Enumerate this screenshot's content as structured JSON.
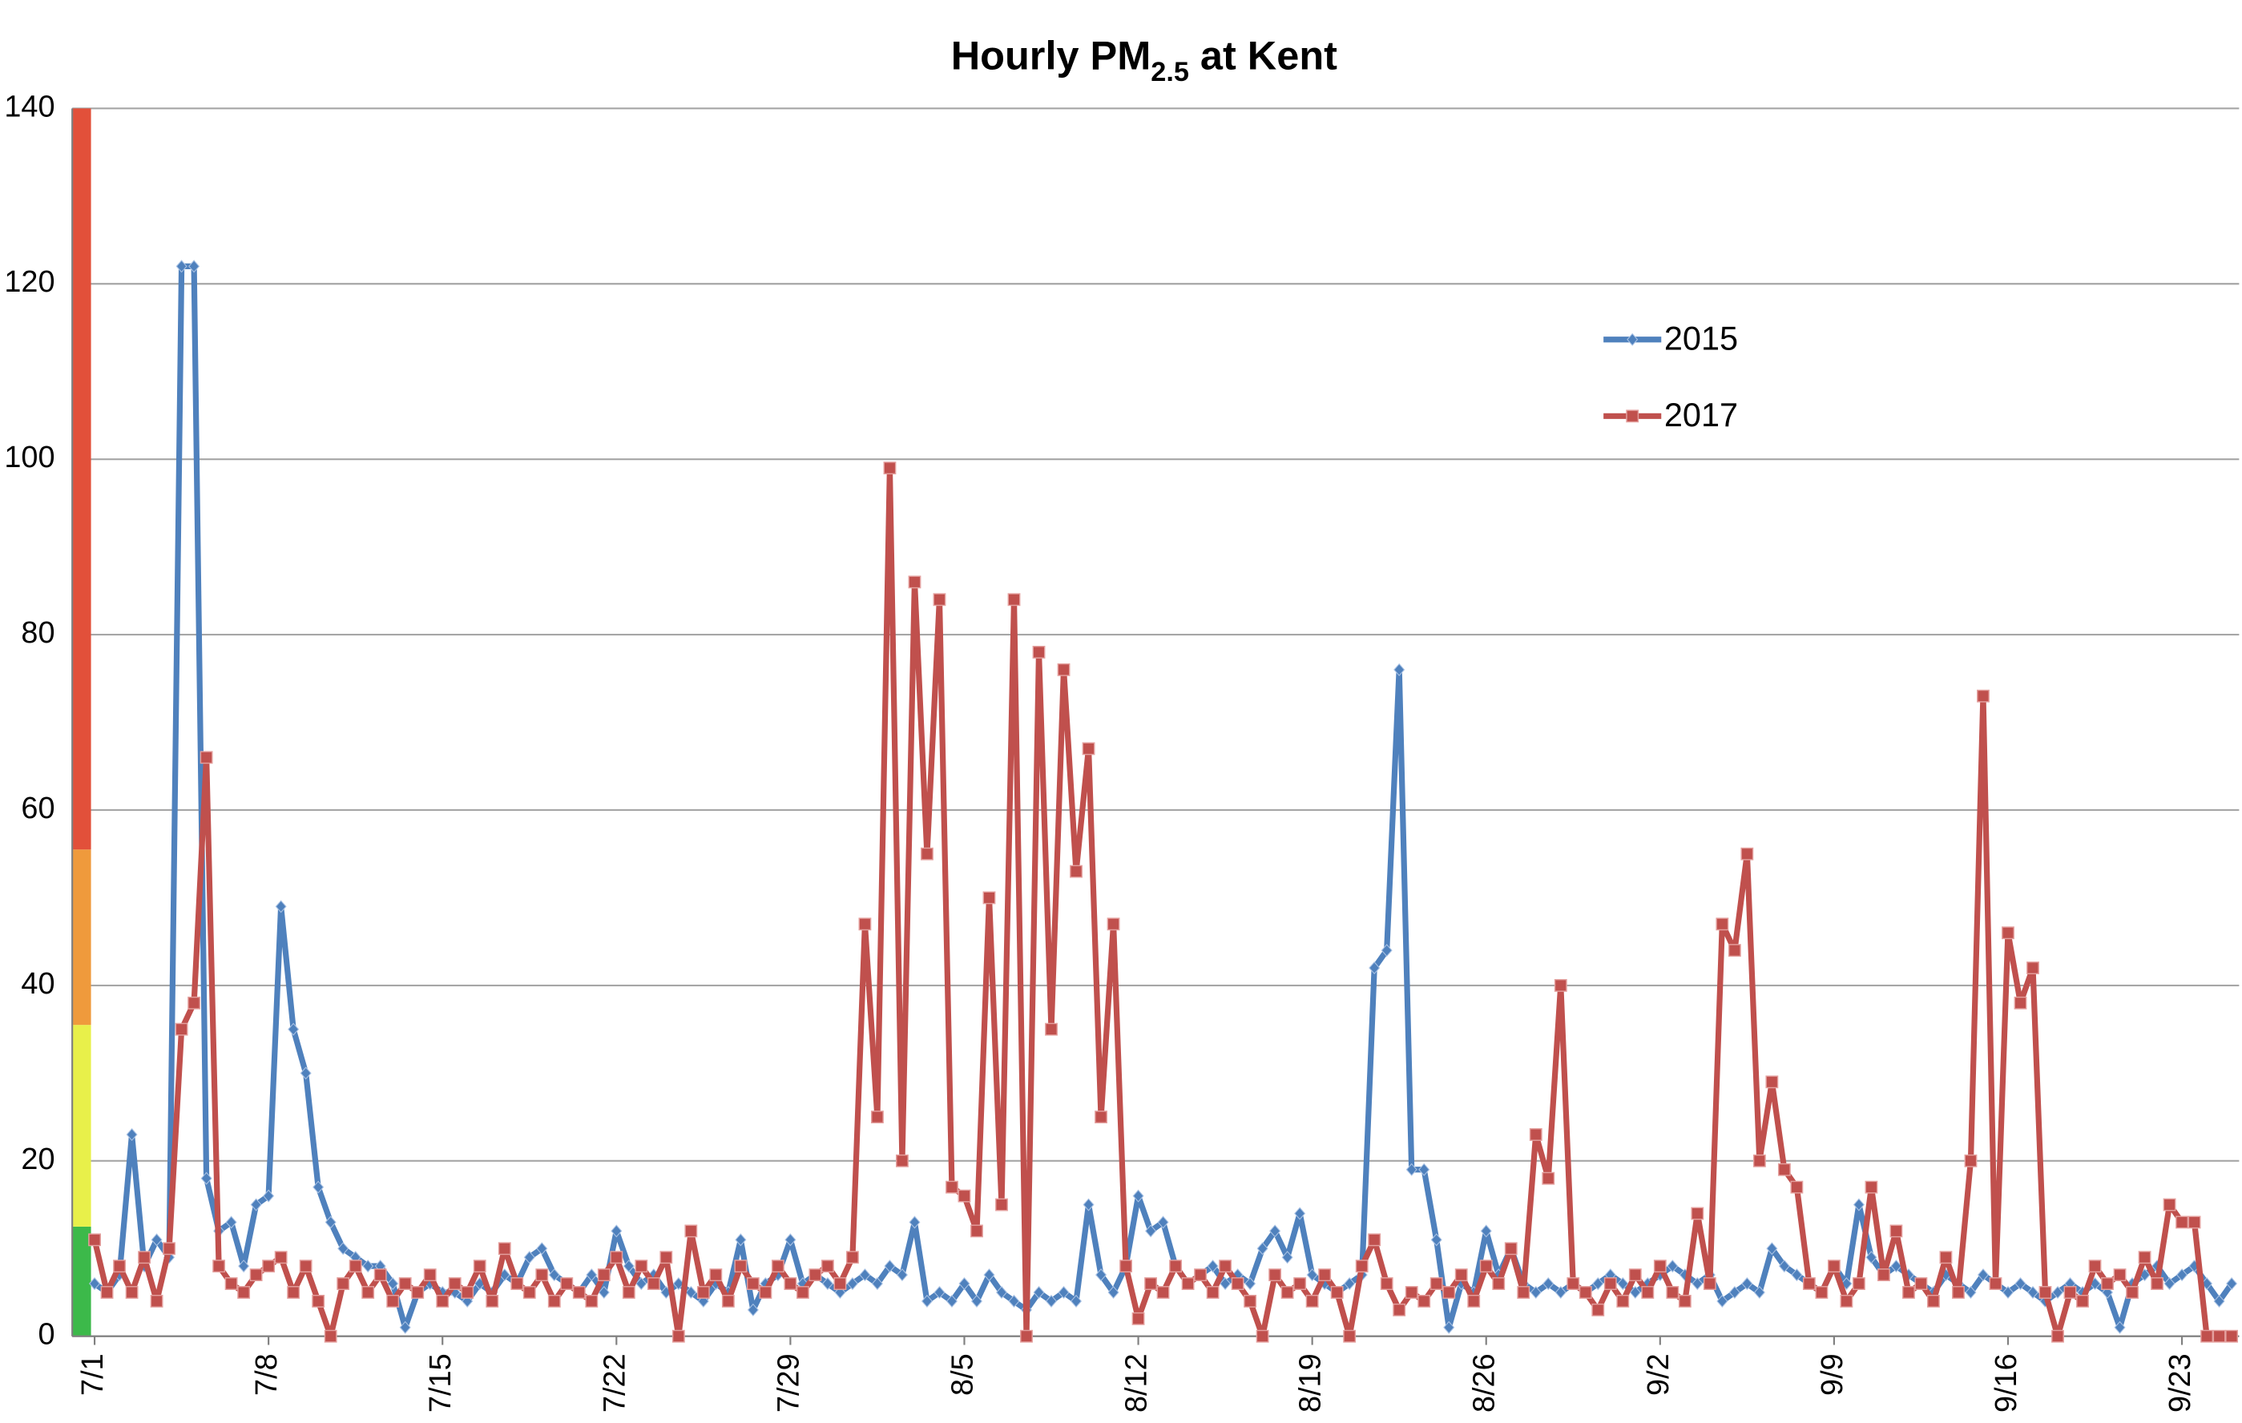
{
  "chart_data": {
    "type": "line",
    "title": {
      "main": "Hourly PM",
      "subscript": "2.5",
      "rest": " at Kent"
    },
    "x": [
      0,
      0.5,
      1,
      1.5,
      2,
      2.5,
      3,
      3.5,
      4,
      4.5,
      5,
      5.5,
      6,
      6.5,
      7,
      7.5,
      8,
      8.5,
      9,
      9.5,
      10,
      10.5,
      11,
      11.5,
      12,
      12.5,
      13,
      13.5,
      14,
      14.5,
      15,
      15.5,
      16,
      16.5,
      17,
      17.5,
      18,
      18.5,
      19,
      19.5,
      20,
      20.5,
      21,
      21.5,
      22,
      22.5,
      23,
      23.5,
      24,
      24.5,
      25,
      25.5,
      26,
      26.5,
      27,
      27.5,
      28,
      28.5,
      29,
      29.5,
      30,
      30.5,
      31,
      31.5,
      32,
      32.5,
      33,
      33.5,
      34,
      34.5,
      35,
      35.5,
      36,
      36.5,
      37,
      37.5,
      38,
      38.5,
      39,
      39.5,
      40,
      40.5,
      41,
      41.5,
      42,
      42.5,
      43,
      43.5,
      44,
      44.5,
      45,
      45.5,
      46,
      46.5,
      47,
      47.5,
      48,
      48.5,
      49,
      49.5,
      50,
      50.5,
      51,
      51.5,
      52,
      52.5,
      53,
      53.5,
      54,
      54.5,
      55,
      55.5,
      56,
      56.5,
      57,
      57.5,
      58,
      58.5,
      59,
      59.5,
      60,
      60.5,
      61,
      61.5,
      62,
      62.5,
      63,
      63.5,
      64,
      64.5,
      65,
      65.5,
      66,
      66.5,
      67,
      67.5,
      68,
      68.5,
      69,
      69.5,
      70,
      70.5,
      71,
      71.5,
      72,
      72.5,
      73,
      73.5,
      74,
      74.5,
      75,
      75.5,
      76,
      76.5,
      77,
      77.5,
      78,
      78.5,
      79,
      79.5,
      80,
      80.5,
      81,
      81.5,
      82,
      82.5,
      83,
      83.5,
      84,
      84.5,
      85,
      85.5,
      86
    ],
    "series": [
      {
        "name": "2015",
        "color": "#4f81bd",
        "marker": "diamond",
        "values": [
          6,
          5,
          7,
          23,
          8,
          11,
          9,
          122,
          122,
          18,
          12,
          13,
          8,
          15,
          16,
          49,
          35,
          30,
          17,
          13,
          10,
          9,
          8,
          8,
          6,
          1,
          5,
          6,
          5,
          5,
          4,
          6,
          5,
          7,
          6,
          9,
          10,
          7,
          6,
          5,
          7,
          5,
          12,
          8,
          6,
          7,
          5,
          6,
          5,
          4,
          6,
          5,
          11,
          3,
          6,
          7,
          11,
          6,
          7,
          6,
          5,
          6,
          7,
          6,
          8,
          7,
          13,
          4,
          5,
          4,
          6,
          4,
          7,
          5,
          4,
          3,
          5,
          4,
          5,
          4,
          15,
          7,
          5,
          8,
          16,
          12,
          13,
          8,
          6,
          7,
          8,
          6,
          7,
          6,
          10,
          12,
          9,
          14,
          7,
          6,
          5,
          6,
          7,
          42,
          44,
          76,
          19,
          19,
          11,
          1,
          6,
          5,
          12,
          7,
          10,
          6,
          5,
          6,
          5,
          6,
          5,
          6,
          7,
          6,
          5,
          6,
          7,
          8,
          7,
          6,
          7,
          4,
          5,
          6,
          5,
          10,
          8,
          7,
          6,
          5,
          8,
          6,
          15,
          9,
          7,
          8,
          7,
          6,
          5,
          7,
          6,
          5,
          7,
          6,
          5,
          6,
          5,
          4,
          5,
          6,
          5,
          6,
          5,
          1,
          6,
          7,
          8,
          6,
          7,
          8,
          6,
          4,
          6
        ]
      },
      {
        "name": "2017",
        "color": "#c0504d",
        "marker": "square",
        "values": [
          11,
          5,
          8,
          5,
          9,
          4,
          10,
          35,
          38,
          66,
          8,
          6,
          5,
          7,
          8,
          9,
          5,
          8,
          4,
          0,
          6,
          8,
          5,
          7,
          4,
          6,
          5,
          7,
          4,
          6,
          5,
          8,
          4,
          10,
          6,
          5,
          7,
          4,
          6,
          5,
          4,
          7,
          9,
          5,
          8,
          6,
          9,
          0,
          12,
          5,
          7,
          4,
          8,
          6,
          5,
          8,
          6,
          5,
          7,
          8,
          6,
          9,
          47,
          25,
          99,
          20,
          86,
          55,
          84,
          17,
          16,
          12,
          50,
          15,
          84,
          0,
          78,
          35,
          76,
          53,
          67,
          25,
          47,
          8,
          2,
          6,
          5,
          8,
          6,
          7,
          5,
          8,
          6,
          4,
          0,
          7,
          5,
          6,
          4,
          7,
          5,
          0,
          8,
          11,
          6,
          3,
          5,
          4,
          6,
          5,
          7,
          4,
          8,
          6,
          10,
          5,
          23,
          18,
          40,
          6,
          5,
          3,
          6,
          4,
          7,
          5,
          8,
          5,
          4,
          14,
          6,
          47,
          44,
          55,
          20,
          29,
          19,
          17,
          6,
          5,
          8,
          4,
          6,
          17,
          7,
          12,
          5,
          6,
          4,
          9,
          5,
          20,
          73,
          6,
          46,
          38,
          42,
          5,
          0,
          5,
          4,
          8,
          6,
          7,
          5,
          9,
          6,
          15,
          13,
          13,
          0,
          0,
          0
        ]
      }
    ],
    "xlim": [
      -0.9,
      86.3
    ],
    "xticks": [
      {
        "value": 0,
        "label": "7/1"
      },
      {
        "value": 7,
        "label": "7/8"
      },
      {
        "value": 14,
        "label": "7/15"
      },
      {
        "value": 21,
        "label": "7/22"
      },
      {
        "value": 28,
        "label": "7/29"
      },
      {
        "value": 35,
        "label": "8/5"
      },
      {
        "value": 42,
        "label": "8/12"
      },
      {
        "value": 49,
        "label": "8/19"
      },
      {
        "value": 56,
        "label": "8/26"
      },
      {
        "value": 63,
        "label": "9/2"
      },
      {
        "value": 70,
        "label": "9/9"
      },
      {
        "value": 77,
        "label": "9/16"
      },
      {
        "value": 84,
        "label": "9/23"
      }
    ],
    "ylim": [
      0,
      140
    ],
    "yticks": [
      0,
      20,
      40,
      60,
      80,
      100,
      120,
      140
    ],
    "grid": true,
    "legend": "right",
    "bands": [
      {
        "from": 0,
        "to": 12.5,
        "color": "#3cb94a"
      },
      {
        "from": 12.5,
        "to": 35.5,
        "color": "#e8f04a"
      },
      {
        "from": 35.5,
        "to": 55.5,
        "color": "#ef9a3c"
      },
      {
        "from": 55.5,
        "to": 140,
        "color": "#e2503a"
      }
    ]
  }
}
